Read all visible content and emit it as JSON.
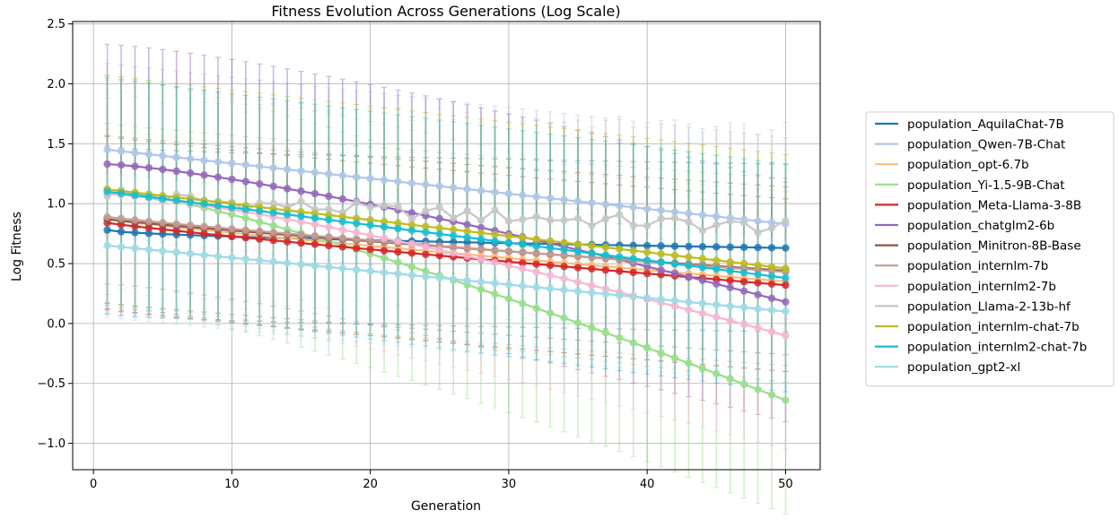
{
  "chart_data": {
    "type": "line",
    "title": "Fitness Evolution Across Generations (Log Scale)",
    "xlabel": "Generation",
    "ylabel": "Log Fitness",
    "xlim": [
      -1.5,
      52.5
    ],
    "ylim": [
      -1.22,
      2.52
    ],
    "xticks": [
      0,
      10,
      20,
      30,
      40,
      50
    ],
    "yticks": [
      -1.0,
      -0.5,
      0.0,
      0.5,
      1.0,
      1.5,
      2.0,
      2.5
    ],
    "xtick_labels": [
      "0",
      "10",
      "20",
      "30",
      "40",
      "50"
    ],
    "ytick_labels": [
      "−1.0",
      "−0.5",
      "0.0",
      "0.5",
      "1.0",
      "1.5",
      "2.0",
      "2.5"
    ],
    "grid": true,
    "legend_position": "outside right",
    "error_bars": true,
    "x_start": 1,
    "x_end": 50,
    "series": [
      {
        "name": "population_AquilaChat-7B",
        "color": "#1f77b4",
        "start": 0.78,
        "end": 0.63,
        "shape": 0.6,
        "err": 0.7
      },
      {
        "name": "population_Qwen-7B-Chat",
        "color": "#aec7e8",
        "start": 1.45,
        "end": 0.83,
        "shape": 1.0,
        "err": 0.72
      },
      {
        "name": "population_opt-6.7b",
        "color": "#ffbb78",
        "start": 0.87,
        "end": 0.35,
        "shape": 0.9,
        "err": 0.75
      },
      {
        "name": "population_Yi-1.5-9B-Chat",
        "color": "#98df8a",
        "start": 1.12,
        "end": -0.64,
        "shape": 1.25,
        "err": 0.95
      },
      {
        "name": "population_Meta-Llama-3-8B",
        "color": "#d62728",
        "start": 0.84,
        "end": 0.32,
        "shape": 0.9,
        "err": 0.72
      },
      {
        "name": "population_chatglm2-6b",
        "color": "#9467bd",
        "start": 1.33,
        "end": 0.18,
        "shape": 1.3,
        "err": 1.0
      },
      {
        "name": "population_Minitron-8B-Base",
        "color": "#8c564b",
        "start": 0.87,
        "end": 0.44,
        "shape": 0.9,
        "err": 0.7
      },
      {
        "name": "population_internlm-7b",
        "color": "#c49c94",
        "start": 0.89,
        "end": 0.43,
        "shape": 0.9,
        "err": 0.78
      },
      {
        "name": "population_internlm2-7b",
        "color": "#f7b6d2",
        "start": 1.08,
        "end": -0.1,
        "shape": 1.3,
        "err": 0.95
      },
      {
        "name": "population_Llama-2-13b-hf",
        "color": "#c7c7c7",
        "start": 1.1,
        "end": 0.8,
        "shape": 0.7,
        "err": 0.82
      },
      {
        "name": "population_internlm-chat-7b",
        "color": "#bcbd22",
        "start": 1.12,
        "end": 0.46,
        "shape": 1.0,
        "err": 0.95
      },
      {
        "name": "population_internlm2-chat-7b",
        "color": "#17becf",
        "start": 1.1,
        "end": 0.38,
        "shape": 1.0,
        "err": 0.95
      },
      {
        "name": "population_gpt2-xl",
        "color": "#9edae5",
        "start": 0.65,
        "end": 0.1,
        "shape": 1.0,
        "err": 0.6
      }
    ]
  }
}
